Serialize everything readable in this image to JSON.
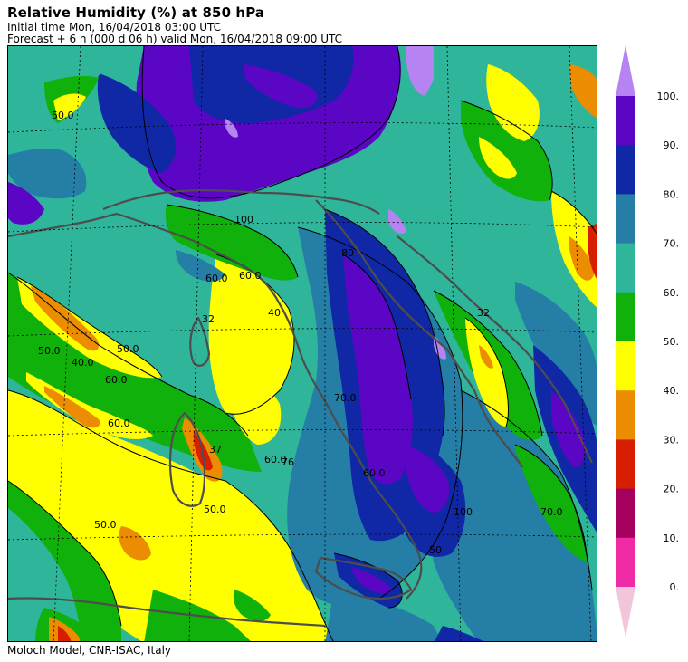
{
  "header": {
    "title": "Relative Humidity (%) at 850 hPa",
    "initial_time": "Initial time  Mon, 16/04/2018  03:00 UTC",
    "forecast": "Forecast  +   6 h  (000 d 06 h)  valid Mon, 16/04/2018 09:00 UTC"
  },
  "footer": {
    "credit": "Moloch Model, CNR-ISAC, Italy"
  },
  "legend": {
    "classes": [
      {
        "label": "0.",
        "color": "#ef2ca6"
      },
      {
        "label": "10.",
        "color": "#a5005e"
      },
      {
        "label": "20.",
        "color": "#d81e00"
      },
      {
        "label": "30.",
        "color": "#ec8c00"
      },
      {
        "label": "40.",
        "color": "#ffff00"
      },
      {
        "label": "50.",
        "color": "#10b10a"
      },
      {
        "label": "60.",
        "color": "#2fb59a"
      },
      {
        "label": "70.",
        "color": "#257ea6"
      },
      {
        "label": "80.",
        "color": "#1028a6"
      },
      {
        "label": "90.",
        "color": "#5a06c4"
      },
      {
        "label": "100.",
        "color": "#b583f2"
      }
    ],
    "lower_triangle_color": "#f2c6da",
    "upper_triangle_color": "#b583f2"
  },
  "map": {
    "contour_labels": [
      "50.0",
      "40.0",
      "50.0",
      "60.0",
      "60.0",
      "50.0",
      "37",
      "50.0",
      "50.0",
      "60.0",
      "76",
      "60.0",
      "70.0",
      "80",
      "60.0",
      "32",
      "70.0",
      "40",
      "32",
      "100",
      "60.0",
      "100",
      "50"
    ]
  }
}
